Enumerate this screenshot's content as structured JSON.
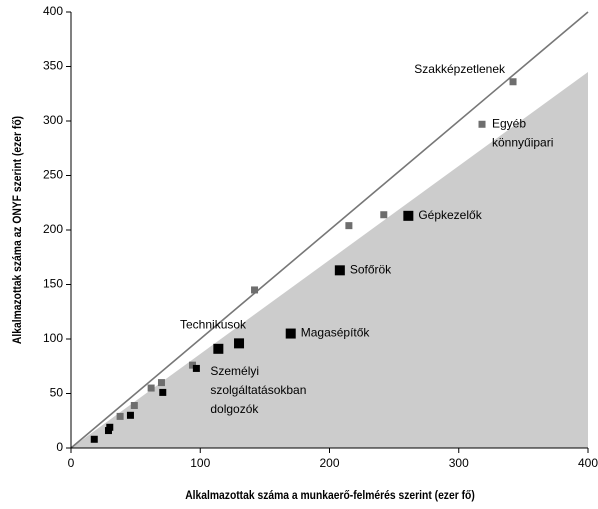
{
  "chart_data": {
    "type": "scatter",
    "xlabel": "Alkalmazottak száma a munkaerő-felmérés szerint (ezer fő)",
    "ylabel": "Alkalmazottak száma az ONYF szerint (ezer fő)",
    "xlim": [
      0,
      400
    ],
    "ylim": [
      0,
      400
    ],
    "xticks": [
      0,
      100,
      200,
      300,
      400
    ],
    "yticks": [
      0,
      50,
      100,
      150,
      200,
      250,
      300,
      350,
      400
    ],
    "reference_line": {
      "x": [
        0,
        400
      ],
      "y": [
        0,
        400
      ],
      "color": "#777777"
    },
    "shaded_region": {
      "x": [
        0,
        400
      ],
      "y": [
        0,
        345
      ],
      "color": "#cccccc"
    },
    "series": [
      {
        "color": "#6e6e6e",
        "size": "small",
        "x": [
          38,
          49,
          62,
          70,
          94,
          142,
          215,
          242,
          318,
          342
        ],
        "y": [
          29,
          39,
          55,
          60,
          76,
          145,
          204,
          214,
          297,
          336
        ],
        "labels": [
          null,
          null,
          null,
          null,
          null,
          null,
          null,
          null,
          [
            "Egyéb",
            "könnyűipari"
          ],
          [
            "Szakképzetlenek"
          ]
        ],
        "label_anchor": [
          null,
          null,
          null,
          null,
          null,
          null,
          null,
          null,
          "right",
          "above-left"
        ]
      },
      {
        "color": "#000000",
        "size": "small",
        "x": [
          18,
          29,
          30,
          46,
          71,
          97
        ],
        "y": [
          8,
          16,
          19,
          30,
          51,
          73
        ]
      },
      {
        "color": "#000000",
        "size": "large",
        "x": [
          114,
          130,
          170,
          208,
          261
        ],
        "y": [
          91,
          96,
          105,
          163,
          213
        ],
        "labels": [
          [
            "Személyi",
            "szolgáltatásokban",
            "dolgozók"
          ],
          [
            "Technikusok"
          ],
          [
            "Magasépítők"
          ],
          [
            "Sofőrök"
          ],
          [
            "Gépkezelők"
          ]
        ],
        "label_anchor": [
          "below",
          "above",
          "right",
          "right",
          "right"
        ]
      }
    ]
  }
}
